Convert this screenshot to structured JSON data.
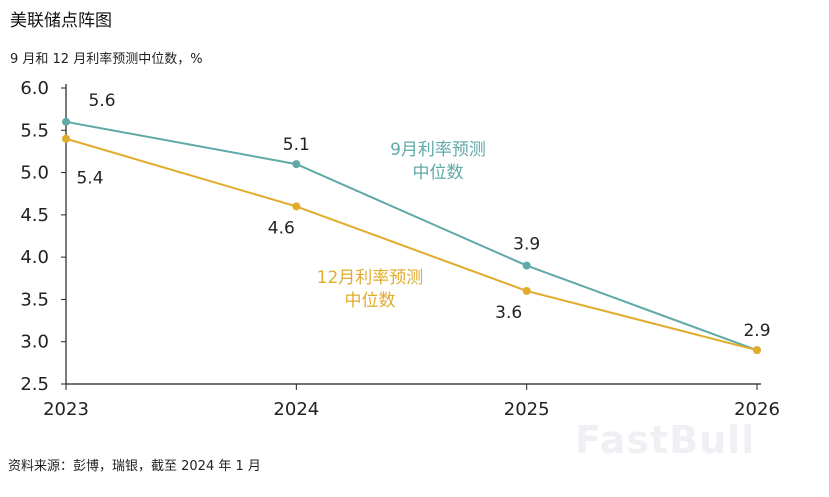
{
  "title": "美联储点阵图",
  "subtitle": "9 月和 12 月利率预测中位数，%",
  "source": "资料来源：彭博，瑞银，截至 2024 年 1 月",
  "watermark": "FastBull",
  "colors": {
    "sep": "#5fa9a7",
    "dec": "#e0ac2a",
    "axis": "#222222"
  },
  "chart_data": {
    "type": "line",
    "title": "美联储点阵图",
    "subtitle": "9 月和 12 月利率预测中位数，%",
    "x": [
      "2023",
      "2024",
      "2025",
      "2026"
    ],
    "ylim": [
      2.5,
      6.0
    ],
    "yticks": [
      "2.5",
      "3.0",
      "3.5",
      "4.0",
      "4.5",
      "5.0",
      "5.5",
      "6.0"
    ],
    "grid": false,
    "series": [
      {
        "name_lines": [
          "9月利率预测",
          "中位数"
        ],
        "values": [
          5.6,
          5.1,
          3.9,
          2.9
        ],
        "labels": [
          "5.6",
          "5.1",
          "3.9",
          "2.9"
        ]
      },
      {
        "name_lines": [
          "12月利率预测",
          "中位数"
        ],
        "values": [
          5.4,
          4.6,
          3.6,
          2.9
        ],
        "labels": [
          "5.4",
          "4.6",
          "3.6",
          ""
        ]
      }
    ]
  }
}
